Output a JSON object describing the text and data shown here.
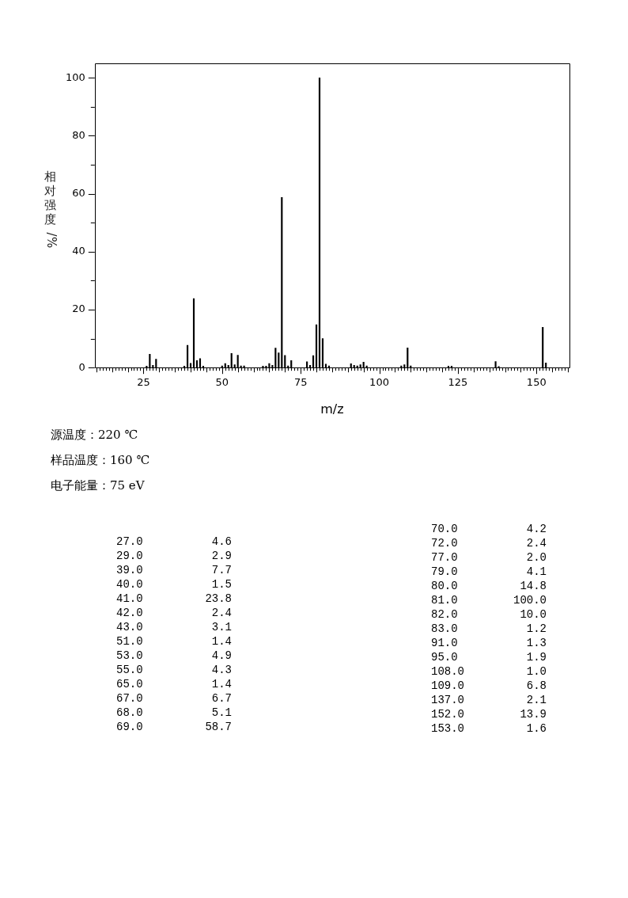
{
  "chart_data": [
    {
      "type": "bar",
      "xlabel": "m/z",
      "ylabel": "相对强度/%",
      "color": "#000000",
      "x": [
        26,
        27,
        28,
        29,
        38,
        39,
        40,
        41,
        42,
        43,
        44,
        50,
        51,
        52,
        53,
        54,
        55,
        56,
        57,
        63,
        64,
        65,
        66,
        67,
        68,
        69,
        70,
        71,
        72,
        77,
        78,
        79,
        80,
        81,
        82,
        83,
        84,
        91,
        92,
        93,
        94,
        95,
        96,
        107,
        108,
        109,
        110,
        122,
        123,
        137,
        138,
        152,
        153
      ],
      "values": [
        0.5,
        4.6,
        0.8,
        2.9,
        0.5,
        7.7,
        1.5,
        23.8,
        2.4,
        3.1,
        0.5,
        0.6,
        1.4,
        0.8,
        4.9,
        1.0,
        4.3,
        0.6,
        0.6,
        0.5,
        0.5,
        1.4,
        0.8,
        6.7,
        5.1,
        58.7,
        4.2,
        0.6,
        2.4,
        2.0,
        0.8,
        4.1,
        14.8,
        100.0,
        10.0,
        1.2,
        0.6,
        1.3,
        0.8,
        0.6,
        1.0,
        1.9,
        0.6,
        0.6,
        1.0,
        6.8,
        0.6,
        0.5,
        0.5,
        2.1,
        0.4,
        13.9,
        1.6
      ],
      "xlim": [
        10,
        160
      ],
      "xticks": [
        {
          "value": 10,
          "label": null
        },
        {
          "value": 11,
          "label": null
        },
        {
          "value": 12,
          "label": null
        },
        {
          "value": 13,
          "label": null
        },
        {
          "value": 14,
          "label": null
        },
        {
          "value": 15,
          "label": null
        },
        {
          "value": 16,
          "label": null
        },
        {
          "value": 17,
          "label": null
        },
        {
          "value": 18,
          "label": null
        },
        {
          "value": 19,
          "label": null
        },
        {
          "value": 20,
          "label": null
        },
        {
          "value": 21,
          "label": null
        },
        {
          "value": 22,
          "label": null
        },
        {
          "value": 23,
          "label": null
        },
        {
          "value": 24,
          "label": null
        },
        25,
        {
          "value": 26,
          "label": null
        },
        {
          "value": 27,
          "label": null
        },
        {
          "value": 28,
          "label": null
        },
        {
          "value": 29,
          "label": null
        },
        {
          "value": 30,
          "label": null
        },
        {
          "value": 31,
          "label": null
        },
        {
          "value": 32,
          "label": null
        },
        {
          "value": 33,
          "label": null
        },
        {
          "value": 34,
          "label": null
        },
        {
          "value": 35,
          "label": null
        },
        {
          "value": 36,
          "label": null
        },
        {
          "value": 37,
          "label": null
        },
        {
          "value": 38,
          "label": null
        },
        {
          "value": 39,
          "label": null
        },
        {
          "value": 40,
          "label": null
        },
        {
          "value": 41,
          "label": null
        },
        {
          "value": 42,
          "label": null
        },
        {
          "value": 43,
          "label": null
        },
        {
          "value": 44,
          "label": null
        },
        {
          "value": 45,
          "label": null
        },
        {
          "value": 46,
          "label": null
        },
        {
          "value": 47,
          "label": null
        },
        {
          "value": 48,
          "label": null
        },
        {
          "value": 49,
          "label": null
        },
        50,
        {
          "value": 51,
          "label": null
        },
        {
          "value": 52,
          "label": null
        },
        {
          "value": 53,
          "label": null
        },
        {
          "value": 54,
          "label": null
        },
        {
          "value": 55,
          "label": null
        },
        {
          "value": 56,
          "label": null
        },
        {
          "value": 57,
          "label": null
        },
        {
          "value": 58,
          "label": null
        },
        {
          "value": 59,
          "label": null
        },
        {
          "value": 60,
          "label": null
        },
        {
          "value": 61,
          "label": null
        },
        {
          "value": 62,
          "label": null
        },
        {
          "value": 63,
          "label": null
        },
        {
          "value": 64,
          "label": null
        },
        {
          "value": 65,
          "label": null
        },
        {
          "value": 66,
          "label": null
        },
        {
          "value": 67,
          "label": null
        },
        {
          "value": 68,
          "label": null
        },
        {
          "value": 69,
          "label": null
        },
        {
          "value": 70,
          "label": null
        },
        {
          "value": 71,
          "label": null
        },
        {
          "value": 72,
          "label": null
        },
        {
          "value": 73,
          "label": null
        },
        {
          "value": 74,
          "label": null
        },
        75,
        {
          "value": 76,
          "label": null
        },
        {
          "value": 77,
          "label": null
        },
        {
          "value": 78,
          "label": null
        },
        {
          "value": 79,
          "label": null
        },
        {
          "value": 80,
          "label": null
        },
        {
          "value": 81,
          "label": null
        },
        {
          "value": 82,
          "label": null
        },
        {
          "value": 83,
          "label": null
        },
        {
          "value": 84,
          "label": null
        },
        {
          "value": 85,
          "label": null
        },
        {
          "value": 86,
          "label": null
        },
        {
          "value": 87,
          "label": null
        },
        {
          "value": 88,
          "label": null
        },
        {
          "value": 89,
          "label": null
        },
        {
          "value": 90,
          "label": null
        },
        {
          "value": 91,
          "label": null
        },
        {
          "value": 92,
          "label": null
        },
        {
          "value": 93,
          "label": null
        },
        {
          "value": 94,
          "label": null
        },
        {
          "value": 95,
          "label": null
        },
        {
          "value": 96,
          "label": null
        },
        {
          "value": 97,
          "label": null
        },
        {
          "value": 98,
          "label": null
        },
        {
          "value": 99,
          "label": null
        },
        100,
        {
          "value": 101,
          "label": null
        },
        {
          "value": 102,
          "label": null
        },
        {
          "value": 103,
          "label": null
        },
        {
          "value": 104,
          "label": null
        },
        {
          "value": 105,
          "label": null
        },
        {
          "value": 106,
          "label": null
        },
        {
          "value": 107,
          "label": null
        },
        {
          "value": 108,
          "label": null
        },
        {
          "value": 109,
          "label": null
        },
        {
          "value": 110,
          "label": null
        },
        {
          "value": 111,
          "label": null
        },
        {
          "value": 112,
          "label": null
        },
        {
          "value": 113,
          "label": null
        },
        {
          "value": 114,
          "label": null
        },
        {
          "value": 115,
          "label": null
        },
        {
          "value": 116,
          "label": null
        },
        {
          "value": 117,
          "label": null
        },
        {
          "value": 118,
          "label": null
        },
        {
          "value": 119,
          "label": null
        },
        {
          "value": 120,
          "label": null
        },
        {
          "value": 121,
          "label": null
        },
        {
          "value": 122,
          "label": null
        },
        {
          "value": 123,
          "label": null
        },
        {
          "value": 124,
          "label": null
        },
        125,
        {
          "value": 126,
          "label": null
        },
        {
          "value": 127,
          "label": null
        },
        {
          "value": 128,
          "label": null
        },
        {
          "value": 129,
          "label": null
        },
        {
          "value": 130,
          "label": null
        },
        {
          "value": 131,
          "label": null
        },
        {
          "value": 132,
          "label": null
        },
        {
          "value": 133,
          "label": null
        },
        {
          "value": 134,
          "label": null
        },
        {
          "value": 135,
          "label": null
        },
        {
          "value": 136,
          "label": null
        },
        {
          "value": 137,
          "label": null
        },
        {
          "value": 138,
          "label": null
        },
        {
          "value": 139,
          "label": null
        },
        {
          "value": 140,
          "label": null
        },
        {
          "value": 141,
          "label": null
        },
        {
          "value": 142,
          "label": null
        },
        {
          "value": 143,
          "label": null
        },
        {
          "value": 144,
          "label": null
        },
        {
          "value": 145,
          "label": null
        },
        {
          "value": 146,
          "label": null
        },
        {
          "value": 147,
          "label": null
        },
        {
          "value": 148,
          "label": null
        },
        {
          "value": 149,
          "label": null
        },
        150,
        {
          "value": 151,
          "label": null
        },
        {
          "value": 152,
          "label": null
        },
        {
          "value": 153,
          "label": null
        },
        {
          "value": 154,
          "label": null
        },
        {
          "value": 155,
          "label": null
        },
        {
          "value": 156,
          "label": null
        },
        {
          "value": 157,
          "label": null
        },
        {
          "value": 158,
          "label": null
        },
        {
          "value": 159,
          "label": null
        },
        {
          "value": 160,
          "label": null
        }
      ],
      "ylim": [
        0,
        105
      ],
      "yticks": [
        0,
        {
          "value": 10,
          "label": null
        },
        20,
        {
          "value": 30,
          "label": null
        },
        40,
        {
          "value": 50,
          "label": null
        },
        60,
        {
          "value": 70,
          "label": null
        },
        80,
        {
          "value": 90,
          "label": null
        },
        100
      ],
      "annotations": [
        "源温度：220 ℃",
        "样品温度：160 ℃",
        "电子能量：75 eV"
      ]
    },
    {
      "type": "other",
      "categories": [
        "27.0",
        "29.0",
        "39.0",
        "40.0",
        "41.0",
        "42.0",
        "43.0",
        "51.0",
        "53.0",
        "55.0",
        "65.0",
        "67.0",
        "68.0",
        "69.0",
        "70.0",
        "72.0",
        "77.0",
        "79.0",
        "80.0",
        "81.0",
        "82.0",
        "83.0",
        "91.0",
        "95.0",
        "108.0",
        "109.0",
        "137.0",
        "152.0",
        "153.0"
      ],
      "value_labels": [
        "4.6",
        "2.9",
        "7.7",
        "1.5",
        "23.8",
        "2.4",
        "3.1",
        "1.4",
        "4.9",
        "4.3",
        "1.4",
        "6.7",
        "5.1",
        "58.7",
        "4.2",
        "2.4",
        "2.0",
        "4.1",
        "14.8",
        "100.0",
        "10.0",
        "1.2",
        "1.3",
        "1.9",
        "1.0",
        "6.8",
        "2.1",
        "13.9",
        "1.6"
      ]
    }
  ]
}
